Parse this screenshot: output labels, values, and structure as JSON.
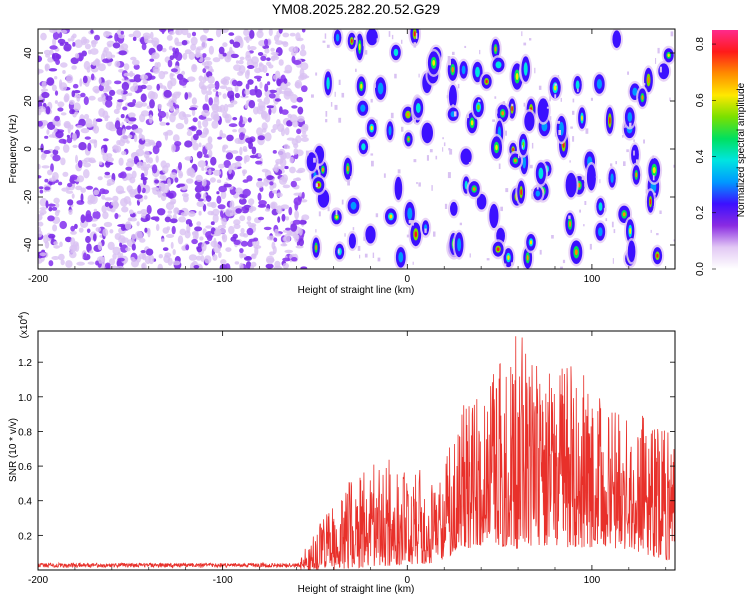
{
  "title": "YM08.2025.282.20.52.G29",
  "chart_data": [
    {
      "type": "heatmap",
      "title": "YM08.2025.282.20.52.G29",
      "xlabel": "Height of straight line (km)",
      "ylabel": "Frequency (Hz)",
      "xlim": [
        -200,
        145
      ],
      "ylim": [
        -50,
        50
      ],
      "xticks": [
        -200,
        -100,
        0,
        100
      ],
      "yticks": [
        -40,
        -20,
        0,
        20,
        40
      ],
      "colorbar": {
        "label": "Normalized spectral amplitude",
        "range": [
          0.0,
          0.85
        ],
        "ticks": [
          0.0,
          0.2,
          0.4,
          0.6,
          0.8
        ],
        "colors": [
          "#ffffff",
          "#e2c8f4",
          "#8a2be2",
          "#3c10ff",
          "#0099ff",
          "#00e5e0",
          "#00e060",
          "#7ae000",
          "#ffe800",
          "#ff8c00",
          "#ff1a1a",
          "#ff2a8c"
        ]
      },
      "regions": [
        {
          "name": "dense low-amplitude noise",
          "x_range": [
            -200,
            -55
          ],
          "amplitude_range": [
            0.0,
            0.15
          ]
        },
        {
          "name": "sparse higher-amplitude blobs",
          "x_range": [
            -55,
            145
          ],
          "amplitude_range": [
            0.05,
            0.8
          ]
        }
      ]
    },
    {
      "type": "line",
      "xlabel": "Height of straight line (km)",
      "ylabel": "SNR (10 * v/v)",
      "multiplier_label": "(x10",
      "multiplier_exp": "4",
      "multiplier_close": ")",
      "xlim": [
        -200,
        145
      ],
      "ylim": [
        0,
        13800
      ],
      "xticks": [
        -200,
        -100,
        0,
        100
      ],
      "yticks": [
        2000,
        4000,
        6000,
        8000,
        10000,
        12000
      ],
      "ytick_labels": [
        "0.2",
        "0.4",
        "0.6",
        "0.8",
        "1.0",
        "1.2"
      ],
      "series": [
        {
          "name": "SNR",
          "color": "#e8302a",
          "envelope_x": [
            -200,
            -60,
            -45,
            -30,
            -15,
            0,
            15,
            30,
            45,
            60,
            75,
            90,
            105,
            120,
            135,
            145
          ],
          "envelope_max": [
            450,
            450,
            3100,
            5300,
            6300,
            6500,
            5000,
            9600,
            11500,
            13800,
            11600,
            12000,
            10000,
            8800,
            9000,
            7300
          ],
          "envelope_min": [
            0,
            0,
            0,
            100,
            200,
            300,
            400,
            1200,
            1500,
            1200,
            1400,
            1300,
            1300,
            1200,
            700,
            500
          ]
        }
      ]
    }
  ]
}
